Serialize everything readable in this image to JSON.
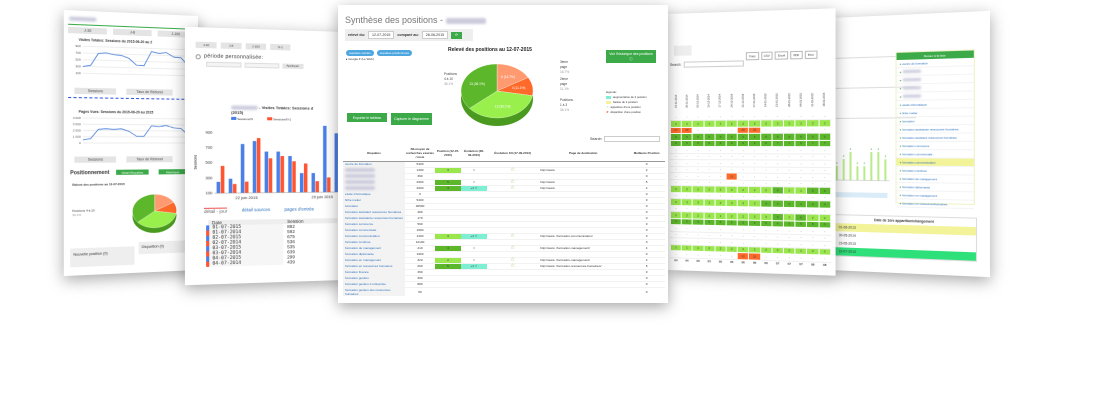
{
  "colors": {
    "green": "#3daa4a",
    "light_green": "#99e64d",
    "dark_green": "#5cb82a",
    "orange": "#ff6a2a",
    "light_orange": "#ff9a70",
    "blue": "#4a80e8",
    "red": "#ff5533",
    "teal": "#7fefd4",
    "yellow": "#f3f39a",
    "mint": "#2ee07a"
  },
  "panel1": {
    "tabs": [
      "J-30",
      "J-8",
      "J-100"
    ],
    "chart1_title": "Visites Totales: Sessions du 2015-06-20 au 2",
    "chart1_yticks": [
      "900",
      "700",
      "500",
      "300",
      "100"
    ],
    "chart1_values": [
      250,
      300,
      750,
      780,
      720,
      700,
      600,
      350,
      340,
      880,
      820,
      860,
      700,
      680,
      380
    ],
    "chart_buttons": [
      "Sessions",
      "Taux de Rebond"
    ],
    "chart2_title": "Pages Vues: Sessions du 2015-06-20 au 2015",
    "chart2_yticks": [
      "4 000",
      "3 000",
      "2 000",
      "1 000",
      "0"
    ],
    "chart2_values": [
      500,
      700,
      2200,
      2300,
      2200,
      2300,
      1900,
      1100,
      1100,
      2800,
      2700,
      2900,
      2500,
      2400,
      1300
    ],
    "section_title": "Positionnement",
    "btn_detail": "Détail Requêtes",
    "btn_history": "Historique",
    "pie_title": "Relevé des positions au 12-07-2015",
    "pie_label": "Positions 4 à 10",
    "pie_label_pct": "36.1%",
    "new_position": "Nouvelle position (0)",
    "disparition": "Disparition (0)"
  },
  "panel2": {
    "tabs": [
      "J-30",
      "J-8",
      "J-100",
      "N-1"
    ],
    "period_label": "période personnalisée:",
    "apply": "Appliquer",
    "chart_title": "- Visites Totales: Sessions d",
    "chart_subtitle": "(2015)",
    "legend": [
      "Sessions/N",
      "Sessions/N-1"
    ],
    "ylabel": "Sessions",
    "yticks": [
      "900",
      "700",
      "500",
      "300",
      "100"
    ],
    "xticks": [
      "22 juin 2015",
      "29 juin 2015"
    ],
    "series_n": [
      250,
      290,
      750,
      790,
      650,
      650,
      590,
      360,
      360,
      1000,
      900
    ],
    "series_n1": [
      460,
      220,
      250,
      830,
      560,
      590,
      520,
      490,
      250,
      300,
      640
    ],
    "detail_tabs": [
      "détail - jour",
      "détail sources",
      "pages d'entrée"
    ],
    "table_headers": [
      "Date",
      "Session"
    ],
    "rows": [
      {
        "date": "01-07-2015",
        "value": "892",
        "series": "n"
      },
      {
        "date": "01-07-2014",
        "value": "592",
        "series": "n1"
      },
      {
        "date": "02-07-2015",
        "value": "675",
        "series": "n"
      },
      {
        "date": "02-07-2014",
        "value": "536",
        "series": "n1"
      },
      {
        "date": "03-07-2015",
        "value": "535",
        "series": "n"
      },
      {
        "date": "03-07-2014",
        "value": "639",
        "series": "n1"
      },
      {
        "date": "04-07-2015",
        "value": "299",
        "series": "n"
      },
      {
        "date": "04-07-2014",
        "value": "439",
        "series": "n1"
      }
    ]
  },
  "main": {
    "title": "Synthèse des positions -",
    "releve_label": "relevé du:",
    "releve_date": "12-07-2015",
    "compare_label": "comparé au:",
    "compare_date": "28-06-2015",
    "pills": [
      "requêtes suivies",
      "requêtes positionnées"
    ],
    "engine": "Google.fr (Le Web)",
    "pie_title": "Relevé des positions au 12-07-2015",
    "pie": [
      {
        "label": "3ème page",
        "count": 6,
        "slice_label": "6 (16.7%)",
        "pct": "16.7%",
        "color": "#ff9a70"
      },
      {
        "label": "2ème page",
        "count": 4,
        "slice_label": "4 (11.1%)",
        "pct": "11.1%",
        "color": "#ff6a2a"
      },
      {
        "label": "Positions 1 à 3",
        "count": 13,
        "slice_label": "13 (36.1%)",
        "pct": "36.1%",
        "color": "#99f04d"
      },
      {
        "label": "Positions 4 à 10",
        "count": 13,
        "slice_label": "13 (36.1%)",
        "pct": "36.1%",
        "color": "#5cb82a"
      }
    ],
    "history_button": "Voir l'historique des positions ⓘ",
    "legend_title": "légende:",
    "legend": [
      "augmentation de 2 position",
      "baisse de 2 position",
      "apparition d'une position",
      "disparition d'une position"
    ],
    "export_button": "Exporter le tableau",
    "capture_button": "Capturer le diagramme",
    "search_label": "Search:",
    "search_value": "",
    "headers": [
      "Requêtes",
      "Nb moyen de recherches exactes / mois",
      "Position (12-07-2015)",
      "Évolution (28-06-2015)",
      "Évolution 1N (17-09-2013)",
      "Page de destination",
      "Meilleure Position"
    ],
    "rows": [
      {
        "q": "centre de formation",
        "n": "5400",
        "pos": "",
        "ev": "",
        "star": false,
        "url": "",
        "best": "0"
      },
      {
        "q": "",
        "n": "1300",
        "pos": "3",
        "ev": "=",
        "star": true,
        "url": "http://www.",
        "best": "2"
      },
      {
        "q": "",
        "n": "390",
        "pos": "",
        "ev": "",
        "star": false,
        "url": "",
        "best": "0"
      },
      {
        "q": "",
        "n": "2900",
        "pos": "5",
        "ev": "=",
        "star": true,
        "url": "http://www.",
        "best": "5"
      },
      {
        "q": "",
        "n": "2900",
        "pos": "4",
        "ev": "+1 ⇧",
        "star": true,
        "url": "http://www.",
        "best": "4"
      },
      {
        "q": "etude informatique",
        "n": "0",
        "pos": "",
        "ev": "",
        "star": false,
        "url": "",
        "best": "0"
      },
      {
        "q": "fiche metier",
        "n": "5400",
        "pos": "",
        "ev": "",
        "star": false,
        "url": "",
        "best": "0"
      },
      {
        "q": "formation",
        "n": "40500",
        "pos": "",
        "ev": "",
        "star": false,
        "url": "",
        "best": "0"
      },
      {
        "q": "formation assistant ressources humaines",
        "n": "480",
        "pos": "",
        "ev": "",
        "star": false,
        "url": "",
        "best": "0"
      },
      {
        "q": "formation assistante ressources humaines",
        "n": "170",
        "pos": "",
        "ev": "",
        "star": false,
        "url": "",
        "best": "0"
      },
      {
        "q": "formation commerce",
        "n": "590",
        "pos": "",
        "ev": "",
        "star": false,
        "url": "",
        "best": "0"
      },
      {
        "q": "formation commerciale",
        "n": "1900",
        "pos": "",
        "ev": "",
        "star": false,
        "url": "",
        "best": "0"
      },
      {
        "q": "formation communication",
        "n": "1300",
        "pos": "3",
        "ev": "+1 ⇧",
        "star": true,
        "url": "http://www.   /formation-communication/",
        "best": "3"
      },
      {
        "q": "formation continue",
        "n": "12100",
        "pos": "",
        "ev": "",
        "star": false,
        "url": "",
        "best": "0"
      },
      {
        "q": "formation de management",
        "n": "210",
        "pos": "4",
        "ev": "=",
        "star": true,
        "url": "http://www.   /formation-management/",
        "best": "4"
      },
      {
        "q": "formation diplomante",
        "n": "1900",
        "pos": "",
        "ev": "",
        "star": false,
        "url": "",
        "best": "0"
      },
      {
        "q": "formation en management",
        "n": "320",
        "pos": "2",
        "ev": "=",
        "star": true,
        "url": "http://www.   /formation-management/",
        "best": "2"
      },
      {
        "q": "formation en ressources humaines",
        "n": "260",
        "pos": "5",
        "ev": "+1 ⇧",
        "star": true,
        "url": "http://www.   /formation-ressources-humaines/",
        "best": "5"
      },
      {
        "q": "formation finance",
        "n": "390",
        "pos": "",
        "ev": "",
        "star": false,
        "url": "",
        "best": "0"
      },
      {
        "q": "formation gestion",
        "n": "390",
        "pos": "",
        "ev": "",
        "star": false,
        "url": "",
        "best": "0"
      },
      {
        "q": "formation gestion d entreprise",
        "n": "880",
        "pos": "",
        "ev": "",
        "star": false,
        "url": "",
        "best": "0"
      },
      {
        "q": "formation gestion des ressources humaines",
        "n": "50",
        "pos": "",
        "ev": "",
        "star": false,
        "url": "",
        "best": "0"
      }
    ]
  },
  "panel4": {
    "search_label": "Search:",
    "export_buttons": [
      "Copy",
      "CSV",
      "Excel",
      "PDF",
      "Print"
    ],
    "dates": [
      "19-11-2014",
      "26-11-2014",
      "03-12-2014",
      "10-12-2014",
      "17-12-2014",
      "24-12-2014",
      "31-12-2014",
      "07-01-2015",
      "14-01-2015",
      "21-01-2015",
      "28-01-2015",
      "04-02-2015",
      "11-02-2015",
      "18-02-2015"
    ],
    "rows": [
      [
        "-",
        "-",
        "-",
        "-",
        "-",
        "-",
        "-",
        "-",
        "-",
        "-",
        "-",
        "-",
        "-",
        "-"
      ],
      [
        "2",
        "2",
        "2",
        "2",
        "2",
        "2",
        "2",
        "2",
        "2",
        "2",
        "2",
        "2",
        "2",
        "2"
      ],
      [
        "27",
        "28",
        "-",
        "-",
        "-",
        "-",
        "28",
        "29",
        "-",
        "-",
        "-",
        "-",
        "-",
        "-"
      ],
      [
        "5",
        "5",
        "5",
        "5",
        "5",
        "5",
        "5",
        "5",
        "5",
        "5",
        "5",
        "5",
        "5",
        "5"
      ],
      [
        "6",
        "6",
        "6",
        "6",
        "6",
        "6",
        "6",
        "6",
        "6",
        "7",
        "7",
        "6",
        "7",
        "7"
      ],
      [
        "-",
        "-",
        "-",
        "-",
        "-",
        "-",
        "-",
        "-",
        "-",
        "-",
        "-",
        "-",
        "-",
        "-"
      ],
      [
        "-",
        "-",
        "-",
        "-",
        "-",
        "-",
        "-",
        "-",
        "-",
        "-",
        "-",
        "-",
        "-",
        "-"
      ],
      [
        "-",
        "-",
        "-",
        "-",
        "-",
        "-",
        "-",
        "-",
        "-",
        "-",
        "-",
        "-",
        "-",
        "-"
      ],
      [
        "-",
        "-",
        "-",
        "-",
        "-",
        "-",
        "-",
        "-",
        "-",
        "-",
        "-",
        "-",
        "-",
        "-"
      ],
      [
        "-",
        "-",
        "-",
        "-",
        "-",
        "21",
        "-",
        "-",
        "-",
        "-",
        "-",
        "-",
        "-",
        "-"
      ],
      [
        "-",
        "-",
        "-",
        "-",
        "-",
        "-",
        "-",
        "-",
        "-",
        "-",
        "-",
        "-",
        "-",
        "-"
      ],
      [
        "2",
        "2",
        "2",
        "2",
        "2",
        "2",
        "2",
        "2",
        "2",
        "6",
        "2",
        "2",
        "6",
        "6"
      ],
      [
        "-",
        "-",
        "-",
        "-",
        "-",
        "-",
        "-",
        "-",
        "-",
        "-",
        "-",
        "-",
        "-",
        "-"
      ],
      [
        "3",
        "3",
        "3",
        "3",
        "3",
        "3",
        "3",
        "3",
        "4",
        "4",
        "5",
        "4",
        "4",
        "4"
      ],
      [
        "-",
        "-",
        "-",
        "-",
        "-",
        "-",
        "-",
        "-",
        "-",
        "-",
        "-",
        "-",
        "-",
        "-"
      ],
      [
        "2",
        "2",
        "2",
        "2",
        "2",
        "2",
        "2",
        "2",
        "3",
        "6",
        "3",
        "6",
        "2",
        "2"
      ],
      [
        "5",
        "5",
        "5",
        "5",
        "5",
        "5",
        "5",
        "5",
        "6",
        "6",
        "5",
        "5",
        "5",
        "5"
      ],
      [
        "-",
        "-",
        "-",
        "-",
        "-",
        "-",
        "-",
        "-",
        "-",
        "-",
        "-",
        "-",
        "-",
        "-"
      ],
      [
        "-",
        "-",
        "-",
        "-",
        "-",
        "-",
        "-",
        "-",
        "-",
        "-",
        "-",
        "-",
        "-",
        "-"
      ],
      [
        "-",
        "-",
        "-",
        "-",
        "-",
        "-",
        "-",
        "-",
        "-",
        "-",
        "-",
        "-",
        "-",
        "-"
      ],
      [
        "1",
        "1",
        "1",
        "2",
        "2",
        "2",
        "2",
        "2",
        "2",
        "2",
        "2",
        "2",
        "2",
        "2"
      ],
      [
        "-",
        "-",
        "-",
        "-",
        "-",
        "-",
        "22",
        "25",
        "-",
        "-",
        "-",
        "-",
        "-",
        "-"
      ]
    ],
    "footer": [
      "04",
      "04",
      "05",
      "05",
      "05",
      "05",
      "06",
      "06",
      "06",
      "07",
      "07",
      "07",
      "08",
      "08"
    ]
  },
  "panel5": {
    "back_button": "Retour à la liste",
    "queries": [
      "centre de formation",
      "",
      "",
      "",
      "",
      "etude informatique",
      "fiche metier",
      "formation",
      "formation assistante ressources humaines",
      "formation assistant ressources humaines",
      "formation commerce",
      "formation commerciale",
      "formation communication",
      "formation continue",
      "formation de management",
      "formation diplomante",
      "formation en management",
      "formation en ressourceshumaines"
    ],
    "selected": "formation communication",
    "bars": [
      2,
      3,
      4,
      2,
      2,
      4,
      4,
      3
    ],
    "table_title": "Date de 1ère apparition/changement",
    "dates": [
      "01-06-2013",
      "30-05-2014",
      "23-05-2013",
      "10-07-2013"
    ]
  }
}
